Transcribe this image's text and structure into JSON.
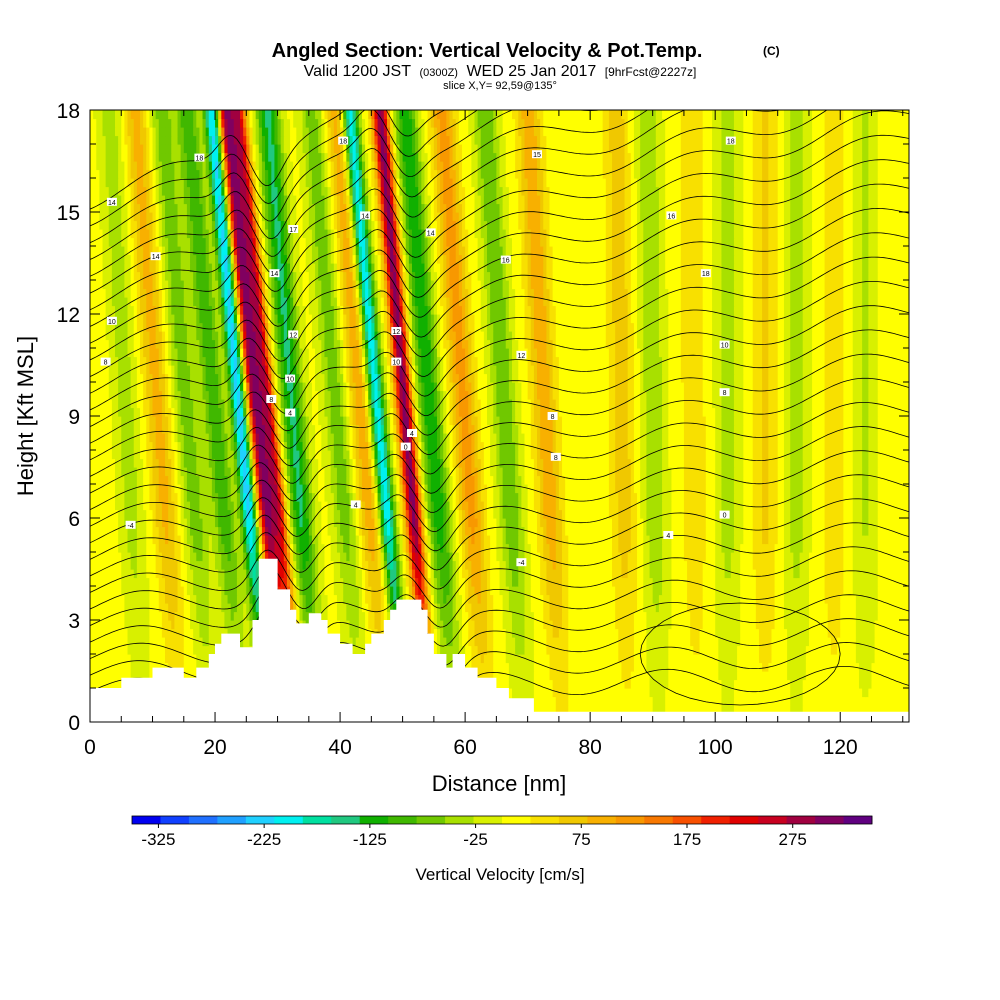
{
  "chart_data": {
    "type": "heatmap",
    "title": "Angled Section: Vertical Velocity & Pot.Temp.",
    "title_units": "(C)",
    "subtitle_parts": [
      "Valid 1200 JST",
      "(0300Z)",
      "WED 25 Jan 2017",
      "[9hrFcst@2227z]"
    ],
    "slice_label": "slice X,Y= 92,59@135°",
    "xlabel": "Distance [nm]",
    "ylabel": "Height [Kft MSL]",
    "xlim": [
      0,
      131
    ],
    "ylim": [
      0,
      18
    ],
    "x_ticks": [
      0,
      20,
      40,
      60,
      80,
      100,
      120
    ],
    "y_ticks": [
      0,
      3,
      6,
      9,
      12,
      15,
      18
    ],
    "colorbar": {
      "label": "Vertical Velocity [cm/s]",
      "tick_labels": [
        "-325",
        "-225",
        "-125",
        "-25",
        "75",
        "175",
        "275"
      ],
      "tick_values": [
        -325,
        -225,
        -125,
        -25,
        75,
        175,
        275
      ],
      "min": -350,
      "max": 350,
      "colors": [
        "#0000f0",
        "#1040ff",
        "#2070ff",
        "#20a0ff",
        "#20d0ff",
        "#00f0f0",
        "#00e0a0",
        "#20c880",
        "#10b000",
        "#40b800",
        "#70c800",
        "#a8e000",
        "#d8f000",
        "#ffff00",
        "#f8e000",
        "#f0c800",
        "#f8b000",
        "#f89800",
        "#f87800",
        "#f85000",
        "#f02000",
        "#e00000",
        "#c80020",
        "#a00040",
        "#800060",
        "#600080"
      ]
    },
    "terrain": [
      [
        0,
        1
      ],
      [
        5,
        1
      ],
      [
        5,
        1.3
      ],
      [
        10,
        1.3
      ],
      [
        10,
        1.6
      ],
      [
        15,
        1.6
      ],
      [
        15,
        1.3
      ],
      [
        17,
        1.3
      ],
      [
        17,
        1.6
      ],
      [
        19,
        1.6
      ],
      [
        19,
        2
      ],
      [
        20,
        2
      ],
      [
        20,
        2.3
      ],
      [
        21,
        2.3
      ],
      [
        21,
        2.6
      ],
      [
        24,
        2.6
      ],
      [
        24,
        2.2
      ],
      [
        26,
        2.2
      ],
      [
        26,
        3
      ],
      [
        27,
        3
      ],
      [
        27,
        4.8
      ],
      [
        30,
        4.8
      ],
      [
        30,
        3.9
      ],
      [
        32,
        3.9
      ],
      [
        32,
        3.3
      ],
      [
        33,
        3.3
      ],
      [
        33,
        2.9
      ],
      [
        35,
        2.9
      ],
      [
        35,
        3.2
      ],
      [
        37,
        3.2
      ],
      [
        37,
        3
      ],
      [
        38,
        3
      ],
      [
        38,
        2.6
      ],
      [
        40,
        2.6
      ],
      [
        40,
        2.3
      ],
      [
        42,
        2.3
      ],
      [
        42,
        2
      ],
      [
        44,
        2
      ],
      [
        44,
        2.3
      ],
      [
        45,
        2.3
      ],
      [
        45,
        2.6
      ],
      [
        47,
        2.6
      ],
      [
        47,
        3
      ],
      [
        48,
        3
      ],
      [
        48,
        3.3
      ],
      [
        49,
        3.3
      ],
      [
        49,
        3.6
      ],
      [
        53,
        3.6
      ],
      [
        53,
        3.3
      ],
      [
        54,
        3.3
      ],
      [
        54,
        2.6
      ],
      [
        55,
        2.6
      ],
      [
        55,
        2
      ],
      [
        57,
        2
      ],
      [
        57,
        1.6
      ],
      [
        58,
        1.6
      ],
      [
        58,
        2
      ],
      [
        60,
        2
      ],
      [
        60,
        1.6
      ],
      [
        62,
        1.6
      ],
      [
        62,
        1.3
      ],
      [
        65,
        1.3
      ],
      [
        65,
        1
      ],
      [
        67,
        1
      ],
      [
        67,
        0.7
      ],
      [
        71,
        0.7
      ],
      [
        71,
        0.3
      ],
      [
        131,
        0.3
      ],
      [
        131,
        0
      ]
    ],
    "w_features": [
      {
        "x0": 31.5,
        "slope": -0.55,
        "w": 280
      },
      {
        "x0": 33.5,
        "slope": -0.55,
        "w": 240
      },
      {
        "x0": 28.5,
        "slope": -0.5,
        "w": -240
      },
      {
        "x0": 54.5,
        "slope": -0.45,
        "w": 300
      },
      {
        "x0": 50.5,
        "slope": -0.5,
        "w": -230
      },
      {
        "x0": 36.5,
        "slope": -0.45,
        "w": -150
      },
      {
        "x0": 24.5,
        "slope": -0.5,
        "w": -110
      },
      {
        "x0": 58.5,
        "slope": -0.45,
        "w": -140
      },
      {
        "x0": 63.5,
        "slope": -0.4,
        "w": 110
      },
      {
        "x0": 69.5,
        "slope": -0.35,
        "w": -90
      },
      {
        "x0": 75.5,
        "slope": -0.3,
        "w": 90
      },
      {
        "x0": 19.5,
        "slope": -0.45,
        "w": -80
      },
      {
        "x0": 14.5,
        "slope": -0.4,
        "w": 80
      },
      {
        "x0": 43.5,
        "slope": -0.45,
        "w": -80
      },
      {
        "x0": 47.5,
        "slope": -0.45,
        "w": 90
      },
      {
        "x0": 8.5,
        "slope": -0.3,
        "w": -50
      },
      {
        "x0": 86,
        "slope": -0.1,
        "w": 60
      },
      {
        "x0": 91,
        "slope": -0.1,
        "w": -60
      },
      {
        "x0": 97,
        "slope": -0.05,
        "w": 40
      },
      {
        "x0": 102,
        "slope": 0,
        "w": -50
      },
      {
        "x0": 108,
        "slope": 0,
        "w": 50
      },
      {
        "x0": 113,
        "slope": 0,
        "w": -50
      },
      {
        "x0": 119,
        "slope": 0,
        "w": 40
      },
      {
        "x0": 124,
        "slope": 0,
        "w": -40
      }
    ],
    "isentrope_labels": [
      {
        "x": 6.5,
        "y": 5.8,
        "text": "-4"
      },
      {
        "x": 2.5,
        "y": 10.6,
        "text": "8"
      },
      {
        "x": 3.5,
        "y": 11.8,
        "text": "10"
      },
      {
        "x": 10.5,
        "y": 13.7,
        "text": "14"
      },
      {
        "x": 3.5,
        "y": 15.3,
        "text": "14"
      },
      {
        "x": 17.5,
        "y": 16.6,
        "text": "18"
      },
      {
        "x": 29,
        "y": 9.5,
        "text": "8"
      },
      {
        "x": 32,
        "y": 9.1,
        "text": "4"
      },
      {
        "x": 32,
        "y": 10.1,
        "text": "10"
      },
      {
        "x": 32.5,
        "y": 11.4,
        "text": "12"
      },
      {
        "x": 29.5,
        "y": 13.2,
        "text": "14"
      },
      {
        "x": 32.5,
        "y": 14.5,
        "text": "17"
      },
      {
        "x": 40.5,
        "y": 17.1,
        "text": "18"
      },
      {
        "x": 44,
        "y": 14.9,
        "text": "14"
      },
      {
        "x": 42.5,
        "y": 6.4,
        "text": "4"
      },
      {
        "x": 50.5,
        "y": 8.1,
        "text": "0"
      },
      {
        "x": 51.5,
        "y": 8.5,
        "text": "4"
      },
      {
        "x": 49,
        "y": 10.6,
        "text": "10"
      },
      {
        "x": 49,
        "y": 11.5,
        "text": "12"
      },
      {
        "x": 54.5,
        "y": 14.4,
        "text": "14"
      },
      {
        "x": 66.5,
        "y": 13.6,
        "text": "16"
      },
      {
        "x": 69,
        "y": 10.8,
        "text": "12"
      },
      {
        "x": 71.5,
        "y": 16.7,
        "text": "15"
      },
      {
        "x": 74,
        "y": 9.0,
        "text": "8"
      },
      {
        "x": 74.5,
        "y": 7.8,
        "text": "8"
      },
      {
        "x": 69,
        "y": 4.7,
        "text": "-4"
      },
      {
        "x": 92.5,
        "y": 5.5,
        "text": "4"
      },
      {
        "x": 93,
        "y": 14.9,
        "text": "16"
      },
      {
        "x": 98.5,
        "y": 13.2,
        "text": "18"
      },
      {
        "x": 101.5,
        "y": 11.1,
        "text": "10"
      },
      {
        "x": 101.5,
        "y": 9.7,
        "text": "8"
      },
      {
        "x": 101.5,
        "y": 6.1,
        "text": "0"
      },
      {
        "x": 102.5,
        "y": 17.1,
        "text": "18"
      }
    ],
    "grid": false
  }
}
